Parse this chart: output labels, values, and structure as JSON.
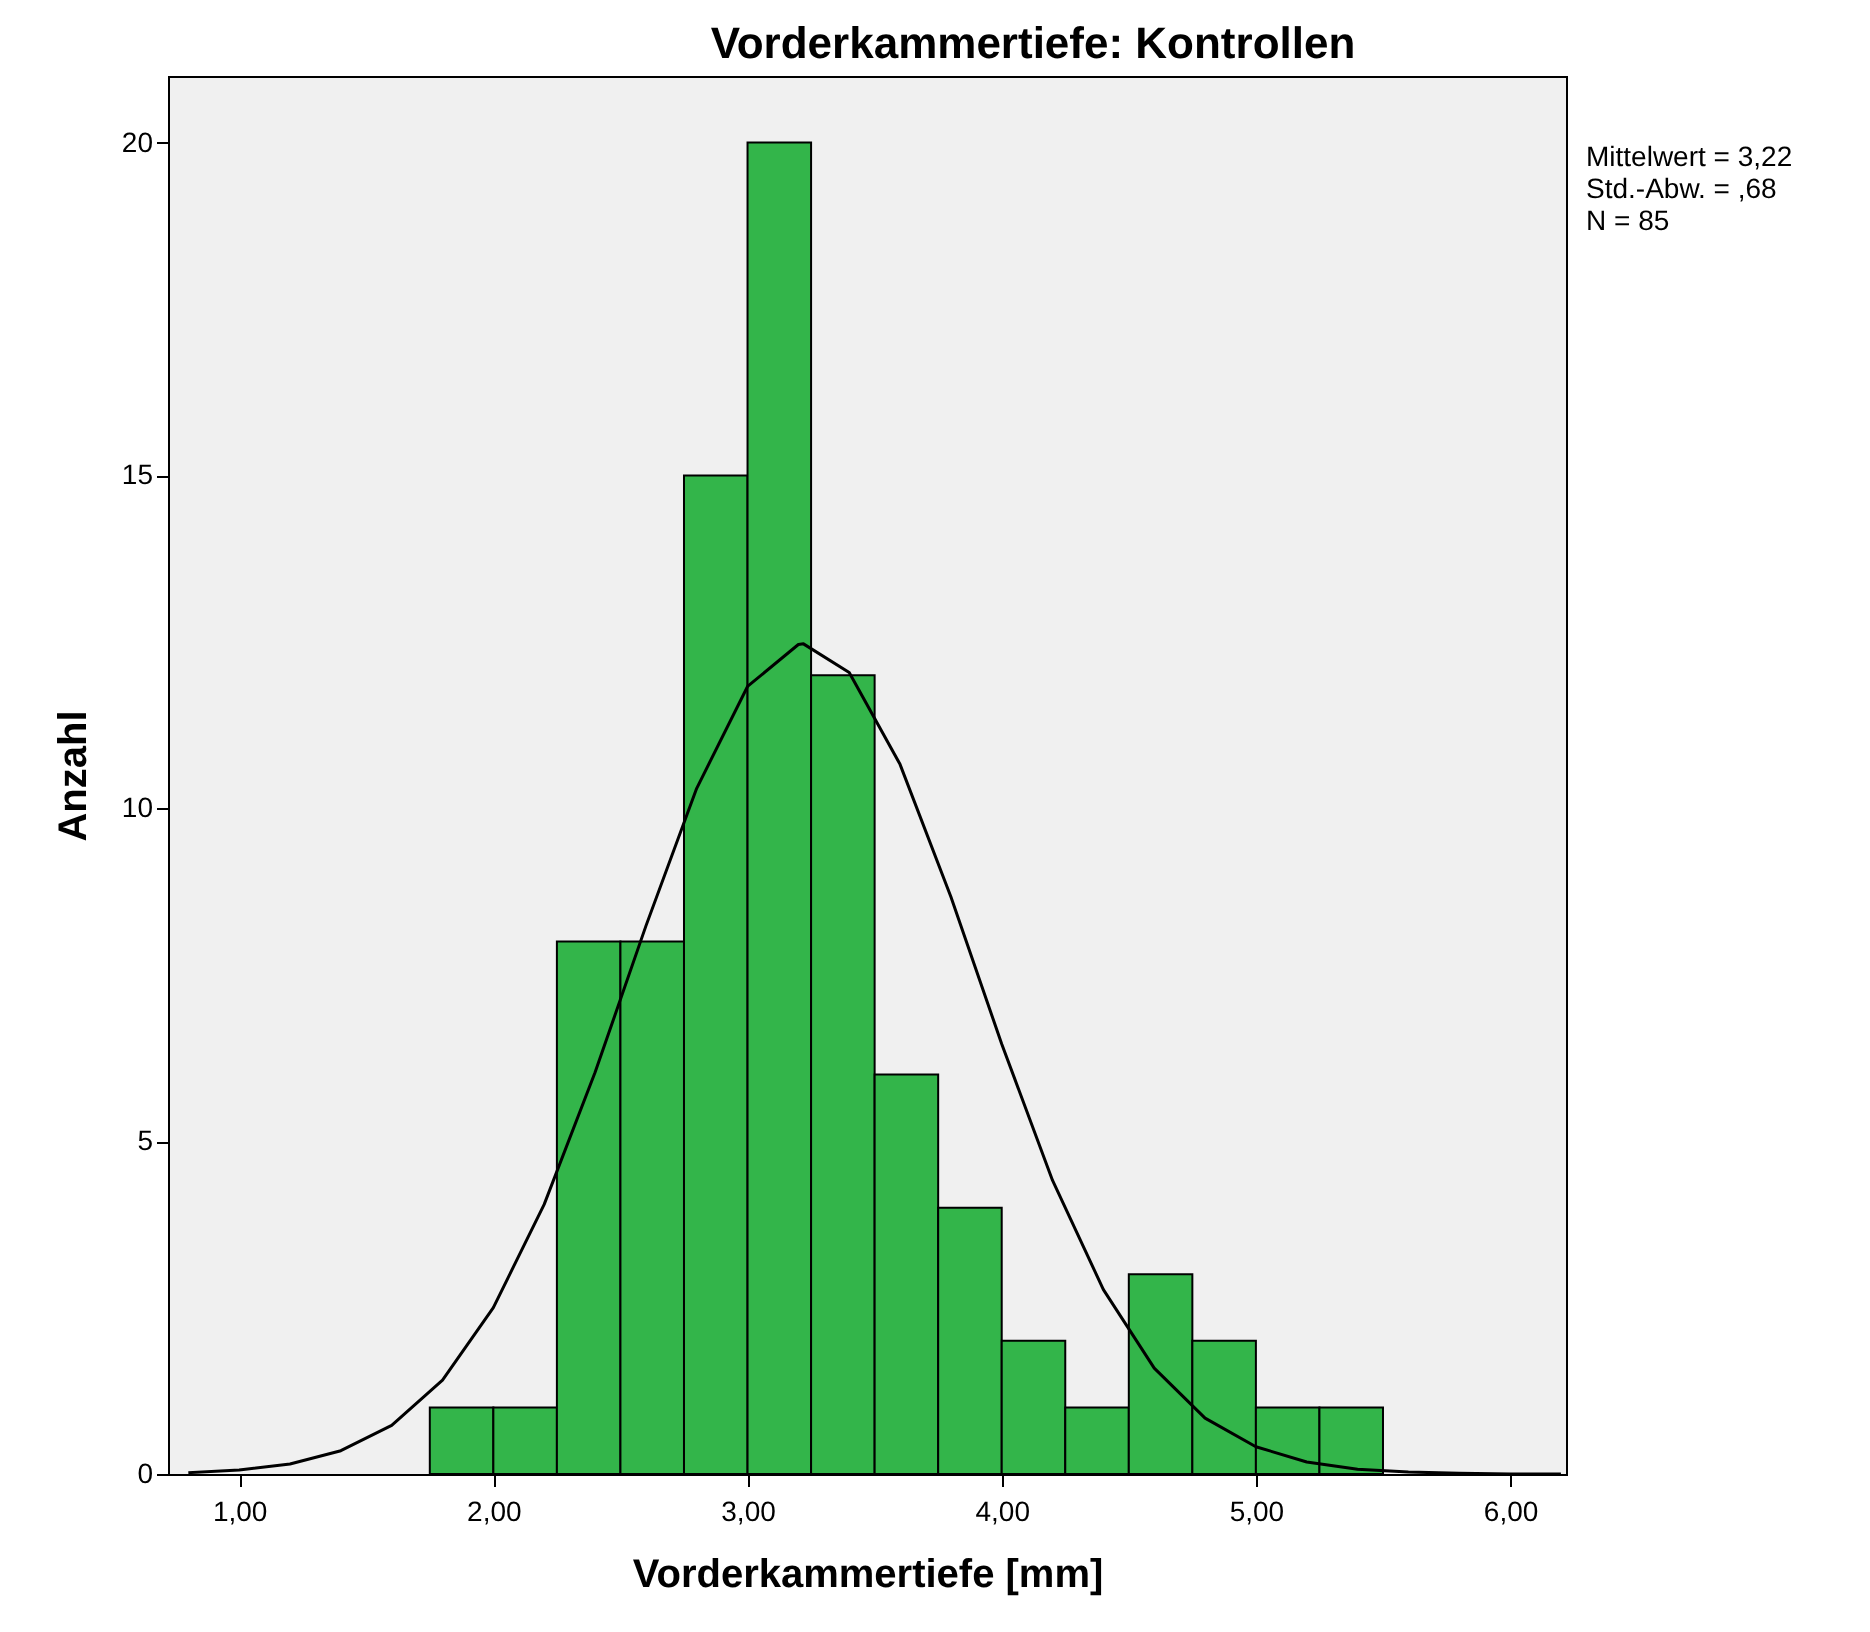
{
  "chart_data": {
    "type": "histogram",
    "title": "Vorderkammertiefe: Kontrollen",
    "xlabel": "Vorderkammertiefe [mm]",
    "ylabel": "Anzahl",
    "bins": [
      1.75,
      2.0,
      2.25,
      2.5,
      2.75,
      3.0,
      3.25,
      3.5,
      3.75,
      4.0,
      4.25,
      4.5,
      4.75,
      5.0,
      5.25,
      5.5
    ],
    "series": [
      {
        "color": "#33b54a",
        "values": [
          1,
          1,
          8,
          8,
          15,
          20,
          12,
          6,
          4,
          2,
          1,
          3,
          2,
          1,
          1
        ]
      },
      {
        "type": "line",
        "color": "#000000",
        "x": [
          0.8,
          1.0,
          1.2,
          1.4,
          1.6,
          1.8,
          2.0,
          2.2,
          2.4,
          2.6,
          2.8,
          3.0,
          3.2,
          3.22,
          3.4,
          3.6,
          3.8,
          4.0,
          4.2,
          4.4,
          4.6,
          4.8,
          5.0,
          5.2,
          5.4,
          5.6,
          5.8,
          6.0,
          6.2
        ],
        "values": [
          0.02,
          0.06,
          0.15,
          0.35,
          0.73,
          1.41,
          2.5,
          4.05,
          6.03,
          8.23,
          10.3,
          11.83,
          12.46,
          12.47,
          12.04,
          10.66,
          8.67,
          6.46,
          4.41,
          2.77,
          1.59,
          0.84,
          0.41,
          0.18,
          0.07,
          0.03,
          0.01,
          0.0,
          0.0
        ]
      }
    ],
    "xlim": [
      0.72,
      6.22
    ],
    "ylim": [
      0,
      21
    ],
    "xticks": [
      {
        "value": 1,
        "label": "1,00"
      },
      {
        "value": 2,
        "label": "2,00"
      },
      {
        "value": 3,
        "label": "3,00"
      },
      {
        "value": 4,
        "label": "4,00"
      },
      {
        "value": 5,
        "label": "5,00"
      },
      {
        "value": 6,
        "label": "6,00"
      }
    ],
    "yticks": [
      0,
      5,
      10,
      15,
      20
    ],
    "annotations": [
      "Mittelwert = 3,22",
      "Std.-Abw. = ,68",
      "N = 85"
    ]
  }
}
